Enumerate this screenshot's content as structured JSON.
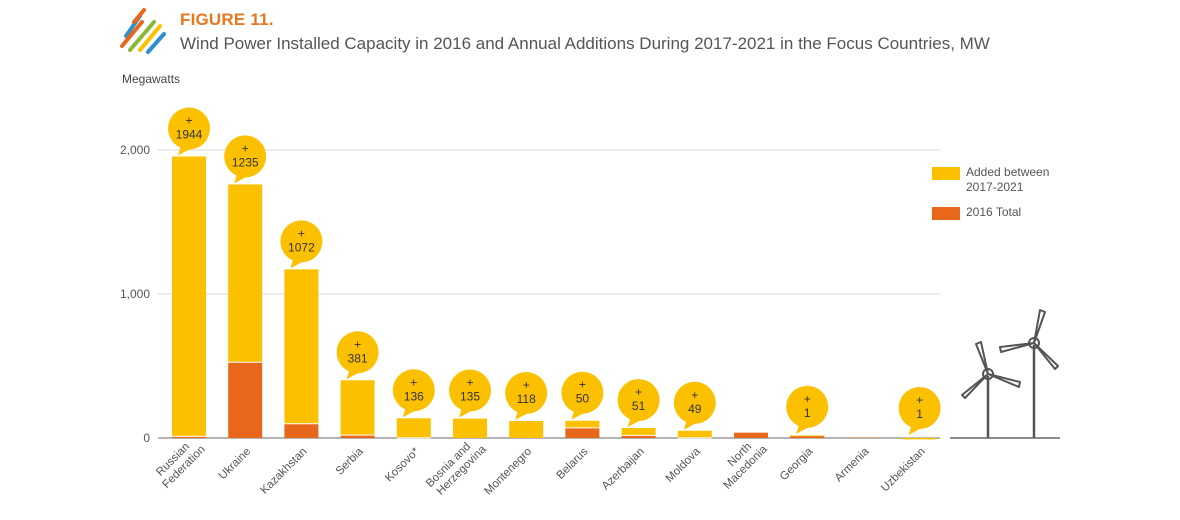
{
  "figure": {
    "label": "FIGURE 11.",
    "title": "Wind Power Installed Capacity in 2016 and Annual Additions During 2017-2021 in the Focus Countries, MW"
  },
  "colors": {
    "added": "#fbc100",
    "base2016": "#e8671a",
    "accent": "#e8771f",
    "grid": "#d9d9d9"
  },
  "logo_icon": "striped-logo-icon",
  "decoration_icon": "wind-turbines-icon",
  "chart_data": {
    "type": "bar",
    "stacked": true,
    "ylabel": "Megawatts",
    "ylim": [
      0,
      2200
    ],
    "yticks": [
      0,
      1000,
      2000
    ],
    "ytick_labels": [
      "0",
      "1,000",
      "2,000"
    ],
    "categories": [
      "Russian Federation",
      "Ukraine",
      "Kazakhstan",
      "Serbia",
      "Kosovo*",
      "Bosnia and Herzegovina",
      "Montenegro",
      "Belarus",
      "Azerbaijan",
      "Moldova",
      "North Macedonia",
      "Georgia",
      "Armenia",
      "Uzbekistan"
    ],
    "category_lines": [
      [
        "Russian",
        "Federation"
      ],
      [
        "Ukraine"
      ],
      [
        "Kazakhstan"
      ],
      [
        "Serbia"
      ],
      [
        "Kosovo*"
      ],
      [
        "Bosnia and",
        "Herzegovina"
      ],
      [
        "Montenegro"
      ],
      [
        "Belarus"
      ],
      [
        "Azerbaijan"
      ],
      [
        "Moldova"
      ],
      [
        "North",
        "Macedonia"
      ],
      [
        "Georgia"
      ],
      [
        "Armenia"
      ],
      [
        "Uzbekistan"
      ]
    ],
    "series": [
      {
        "name": "2016 Total",
        "values": [
          11,
          526,
          99,
          20,
          1,
          0,
          0,
          70,
          18,
          1,
          37,
          21,
          3,
          0
        ]
      },
      {
        "name": "Added between 2017-2021",
        "values": [
          1944,
          1235,
          1072,
          381,
          136,
          135,
          118,
          50,
          51,
          49,
          0,
          1,
          0,
          1
        ]
      }
    ],
    "annotations": [
      "1944",
      "1235",
      "1072",
      "381",
      "136",
      "135",
      "118",
      "50",
      "51",
      "49",
      "",
      "1",
      "",
      "1"
    ],
    "annotation_prefix": "+",
    "legend": [
      {
        "label": "Added between 2017-2021",
        "lines": [
          "Added between",
          "2017-2021"
        ]
      },
      {
        "label": "2016 Total",
        "lines": [
          "2016 Total"
        ]
      }
    ],
    "legend_position": "right"
  }
}
